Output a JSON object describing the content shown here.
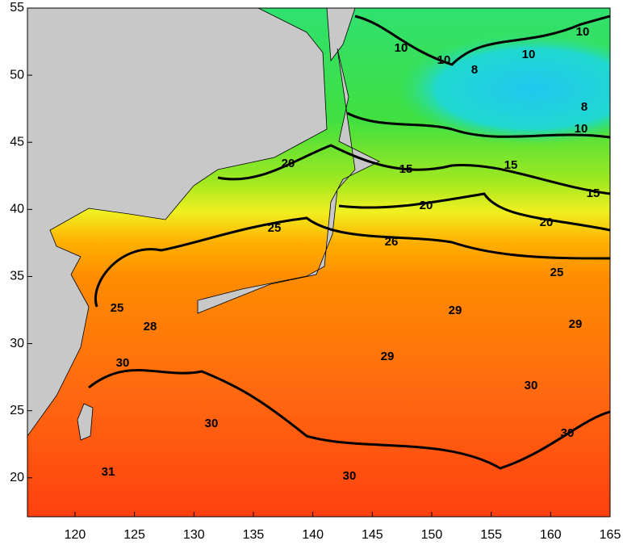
{
  "chart_data": {
    "type": "contour-map",
    "xlim": [
      116,
      165
    ],
    "ylim": [
      17.1,
      55
    ],
    "xticks": [
      120,
      125,
      130,
      135,
      140,
      145,
      150,
      155,
      160,
      165
    ],
    "yticks": [
      20,
      25,
      30,
      35,
      40,
      45,
      50,
      55
    ],
    "contour_labels": [
      10,
      10,
      10,
      10,
      8,
      8,
      10,
      15,
      15,
      15,
      20,
      20,
      20,
      25,
      26,
      25,
      25,
      28,
      29,
      29,
      29,
      30,
      30,
      30,
      30,
      30,
      31
    ]
  }
}
